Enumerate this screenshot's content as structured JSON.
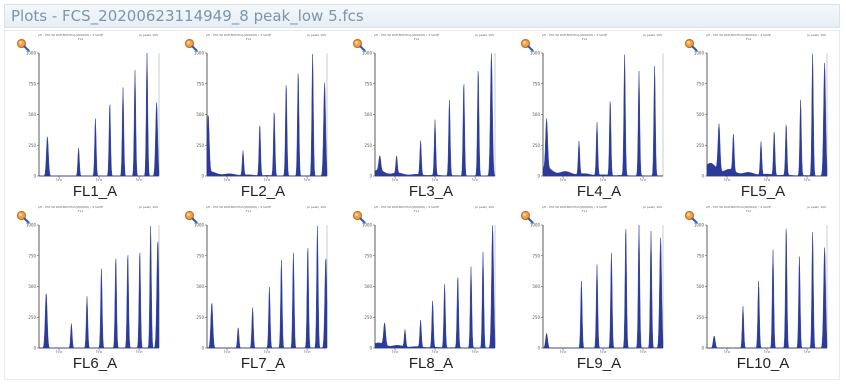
{
  "window": {
    "title": "Plots - FCS_20200623114949_8 peak_low 5.fcs"
  },
  "plot_header": {
    "left_line1": "pH - FAT WI PATLBOOTCA(000000) / 4 SAVE",
    "left_line2": "FL1",
    "right": "(a peak) 100"
  },
  "icons": {
    "zoom": "magnifier-icon"
  },
  "chart_data": [
    {
      "type": "area",
      "title": "",
      "xlabel": "FL1_A",
      "yticks": [
        "0",
        "250",
        "500",
        "750",
        "1000"
      ],
      "ylim": [
        0,
        1000
      ],
      "xticks": [
        "10²",
        "10⁴",
        "10⁶"
      ],
      "peaks": [
        {
          "x": 0.07,
          "y": 0.32
        },
        {
          "x": 0.33,
          "y": 0.23
        },
        {
          "x": 0.47,
          "y": 0.47
        },
        {
          "x": 0.59,
          "y": 0.6
        },
        {
          "x": 0.7,
          "y": 0.72
        },
        {
          "x": 0.8,
          "y": 0.86
        },
        {
          "x": 0.9,
          "y": 1.0
        },
        {
          "x": 0.98,
          "y": 0.6
        }
      ]
    },
    {
      "type": "area",
      "title": "",
      "xlabel": "FL2_A",
      "yticks": [
        "0",
        "250",
        "500",
        "750",
        "1000"
      ],
      "ylim": [
        0,
        1000
      ],
      "xticks": [
        "10²",
        "10⁴",
        "10⁶"
      ],
      "peaks": [
        {
          "x": 0.01,
          "y": 0.47
        },
        {
          "x": 0.3,
          "y": 0.2
        },
        {
          "x": 0.44,
          "y": 0.42
        },
        {
          "x": 0.56,
          "y": 0.53
        },
        {
          "x": 0.66,
          "y": 0.76
        },
        {
          "x": 0.76,
          "y": 0.86
        },
        {
          "x": 0.88,
          "y": 1.0
        },
        {
          "x": 0.98,
          "y": 0.76
        }
      ],
      "base": 0.05
    },
    {
      "type": "area",
      "title": "",
      "xlabel": "FL3_A",
      "yticks": [
        "0",
        "250",
        "500",
        "750",
        "1000"
      ],
      "ylim": [
        0,
        1000
      ],
      "xticks": [
        "10²",
        "10⁴",
        "10⁶"
      ],
      "peaks": [
        {
          "x": 0.04,
          "y": 0.12
        },
        {
          "x": 0.18,
          "y": 0.14
        },
        {
          "x": 0.38,
          "y": 0.28
        },
        {
          "x": 0.5,
          "y": 0.45
        },
        {
          "x": 0.62,
          "y": 0.62
        },
        {
          "x": 0.74,
          "y": 0.77
        },
        {
          "x": 0.86,
          "y": 0.88
        },
        {
          "x": 0.97,
          "y": 1.0
        }
      ],
      "base": 0.07
    },
    {
      "type": "area",
      "title": "",
      "xlabel": "FL4_A",
      "yticks": [
        "0",
        "250",
        "500",
        "750",
        "1000"
      ],
      "ylim": [
        0,
        1000
      ],
      "xticks": [
        "10²",
        "10⁴",
        "10⁶"
      ],
      "peaks": [
        {
          "x": 0.03,
          "y": 0.4
        },
        {
          "x": 0.3,
          "y": 0.27
        },
        {
          "x": 0.45,
          "y": 0.43
        },
        {
          "x": 0.56,
          "y": 0.62
        },
        {
          "x": 0.68,
          "y": 0.99
        },
        {
          "x": 0.8,
          "y": 0.85
        },
        {
          "x": 0.93,
          "y": 0.9
        }
      ],
      "base": 0.1
    },
    {
      "type": "area",
      "title": "",
      "xlabel": "FL5_A",
      "yticks": [
        "0",
        "250",
        "500",
        "750",
        "1000"
      ],
      "ylim": [
        0,
        1000
      ],
      "xticks": [
        "10²",
        "10⁴",
        "10⁶"
      ],
      "peaks": [
        {
          "x": 0.1,
          "y": 0.38
        },
        {
          "x": 0.22,
          "y": 0.3
        },
        {
          "x": 0.45,
          "y": 0.27
        },
        {
          "x": 0.56,
          "y": 0.36
        },
        {
          "x": 0.66,
          "y": 0.42
        },
        {
          "x": 0.78,
          "y": 0.62
        },
        {
          "x": 0.88,
          "y": 1.0
        },
        {
          "x": 0.98,
          "y": 0.92
        }
      ],
      "base": 0.15
    },
    {
      "type": "area",
      "title": "",
      "xlabel": "FL6_A",
      "yticks": [
        "0",
        "250",
        "500",
        "750",
        "1000"
      ],
      "ylim": [
        0,
        1000
      ],
      "xticks": [
        "10²",
        "10⁴",
        "10⁶"
      ],
      "peaks": [
        {
          "x": 0.06,
          "y": 0.45
        },
        {
          "x": 0.27,
          "y": 0.2
        },
        {
          "x": 0.4,
          "y": 0.42
        },
        {
          "x": 0.52,
          "y": 0.65
        },
        {
          "x": 0.64,
          "y": 0.75
        },
        {
          "x": 0.74,
          "y": 0.78
        },
        {
          "x": 0.84,
          "y": 0.8
        },
        {
          "x": 0.93,
          "y": 1.0
        },
        {
          "x": 0.99,
          "y": 0.88
        }
      ]
    },
    {
      "type": "area",
      "title": "",
      "xlabel": "FL7_A",
      "yticks": [
        "0",
        "250",
        "500",
        "750",
        "1000"
      ],
      "ylim": [
        0,
        1000
      ],
      "xticks": [
        "10²",
        "10⁴",
        "10⁶"
      ],
      "peaks": [
        {
          "x": 0.04,
          "y": 0.37
        },
        {
          "x": 0.26,
          "y": 0.17
        },
        {
          "x": 0.38,
          "y": 0.33
        },
        {
          "x": 0.52,
          "y": 0.5
        },
        {
          "x": 0.62,
          "y": 0.72
        },
        {
          "x": 0.72,
          "y": 0.78
        },
        {
          "x": 0.84,
          "y": 0.84
        },
        {
          "x": 0.92,
          "y": 1.0
        },
        {
          "x": 0.99,
          "y": 0.74
        }
      ]
    },
    {
      "type": "area",
      "title": "",
      "xlabel": "FL8_A",
      "yticks": [
        "0",
        "250",
        "500",
        "750",
        "1000"
      ],
      "ylim": [
        0,
        1000
      ],
      "xticks": [
        "10²",
        "10⁴",
        "10⁶"
      ],
      "peaks": [
        {
          "x": 0.08,
          "y": 0.18
        },
        {
          "x": 0.25,
          "y": 0.14
        },
        {
          "x": 0.38,
          "y": 0.22
        },
        {
          "x": 0.48,
          "y": 0.38
        },
        {
          "x": 0.58,
          "y": 0.52
        },
        {
          "x": 0.69,
          "y": 0.59
        },
        {
          "x": 0.8,
          "y": 0.66
        },
        {
          "x": 0.9,
          "y": 0.78
        },
        {
          "x": 0.98,
          "y": 1.0
        }
      ],
      "base": 0.06
    },
    {
      "type": "area",
      "title": "",
      "xlabel": "FL9_A",
      "yticks": [
        "0",
        "250",
        "500",
        "750",
        "1000"
      ],
      "ylim": [
        0,
        1000
      ],
      "xticks": [
        "10²",
        "10⁴",
        "10⁶"
      ],
      "peaks": [
        {
          "x": 0.03,
          "y": 0.12
        },
        {
          "x": 0.32,
          "y": 0.55
        },
        {
          "x": 0.45,
          "y": 0.68
        },
        {
          "x": 0.57,
          "y": 0.78
        },
        {
          "x": 0.69,
          "y": 1.0
        },
        {
          "x": 0.8,
          "y": 1.0
        },
        {
          "x": 0.9,
          "y": 0.95
        },
        {
          "x": 0.98,
          "y": 0.9
        }
      ]
    },
    {
      "type": "area",
      "title": "",
      "xlabel": "FL10_A",
      "yticks": [
        "0",
        "250",
        "500",
        "750",
        "1000"
      ],
      "ylim": [
        0,
        1000
      ],
      "xticks": [
        "10²",
        "10⁴",
        "10⁶"
      ],
      "peaks": [
        {
          "x": 0.06,
          "y": 0.1
        },
        {
          "x": 0.3,
          "y": 0.34
        },
        {
          "x": 0.43,
          "y": 0.55
        },
        {
          "x": 0.55,
          "y": 0.8
        },
        {
          "x": 0.66,
          "y": 1.0
        },
        {
          "x": 0.77,
          "y": 0.75
        },
        {
          "x": 0.88,
          "y": 0.95
        },
        {
          "x": 0.98,
          "y": 0.82
        }
      ]
    }
  ],
  "colors": {
    "fill": "#2a3b9a",
    "axis": "#333333",
    "title": "#7d95a8"
  }
}
